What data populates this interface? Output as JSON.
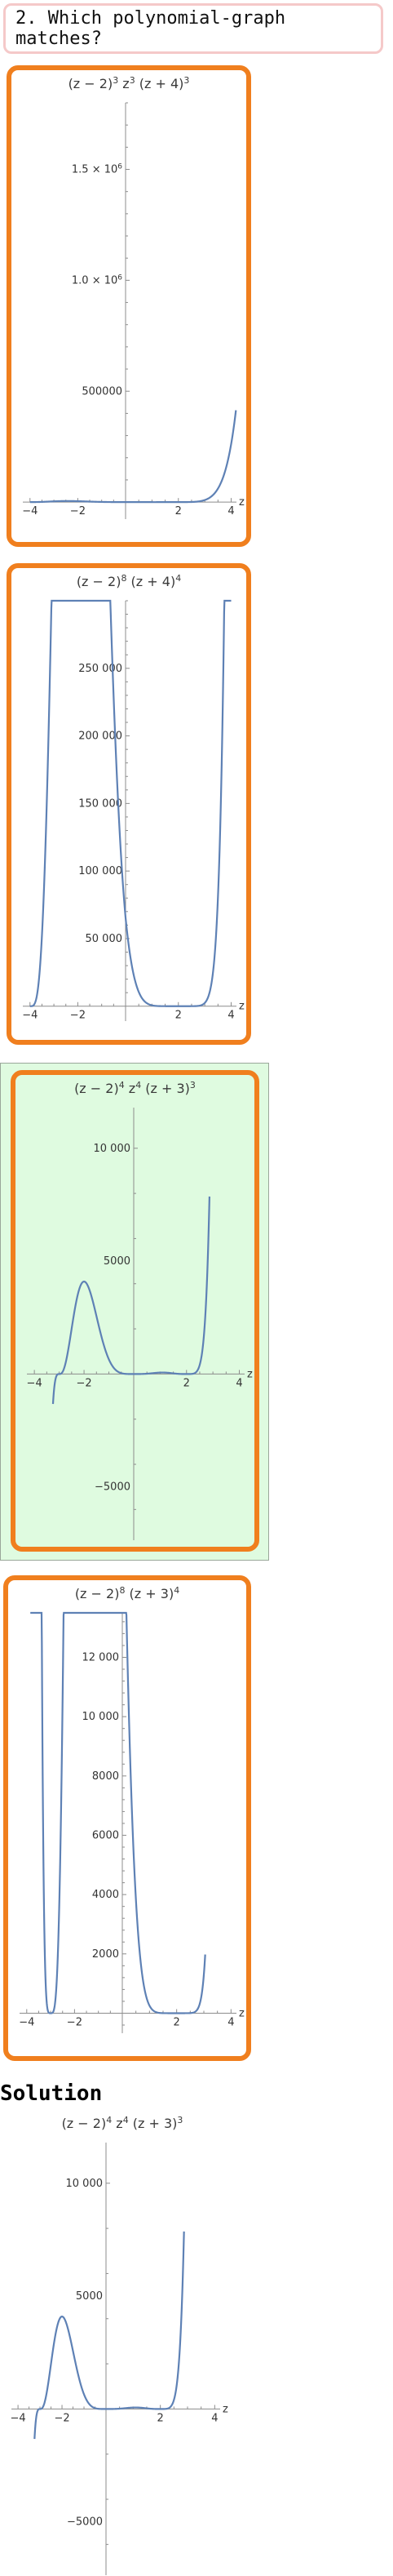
{
  "question": {
    "text": "2. Which polynomial-graph matches?"
  },
  "solution": {
    "title": "Solution"
  },
  "colors": {
    "option_border": "#f07f1e",
    "selected_bg": "#dffbe0",
    "question_border": "#f5c9c9",
    "curve": "#5e81b5"
  },
  "chart_data": [
    {
      "type": "line",
      "title": "(z − 2)³ z³ (z + 4)³",
      "title_parts": [
        "(z − 2)",
        "3",
        " z",
        "3",
        " (z + 4)",
        "3"
      ],
      "xlabel": "z",
      "xlim": [
        -4.3,
        4.2
      ],
      "ylim": [
        -40000,
        1800000
      ],
      "xticks": [
        -4,
        -2,
        2,
        4
      ],
      "xtick_labels": [
        "−4",
        "−2",
        "2",
        "4"
      ],
      "yticks": [
        500000,
        1000000,
        1500000
      ],
      "ytick_labels": [
        "500000",
        "1.0 × 10",
        "1.5 × 10"
      ],
      "ytick_exp": [
        "",
        "6",
        "6"
      ],
      "series": [
        {
          "expr": "p1",
          "x_range": [
            -4,
            4.18
          ]
        }
      ]
    },
    {
      "type": "line",
      "title": "(z − 2)⁸ (z + 4)⁴",
      "title_parts": [
        "(z − 2)",
        "8",
        " (z + 4)",
        "4"
      ],
      "xlabel": "z",
      "xlim": [
        -4.3,
        4.2
      ],
      "ylim": [
        -5000,
        300000
      ],
      "xticks": [
        -4,
        -2,
        2,
        4
      ],
      "xtick_labels": [
        "−4",
        "−2",
        "2",
        "4"
      ],
      "yticks": [
        50000,
        100000,
        150000,
        200000,
        250000
      ],
      "ytick_labels": [
        "50 000",
        "100 000",
        "150 000",
        "200 000",
        "250 000"
      ],
      "ytick_exp": [
        "",
        "",
        "",
        "",
        ""
      ],
      "series": [
        {
          "expr": "p2",
          "x_range": [
            -4.0,
            4.0
          ]
        }
      ]
    },
    {
      "type": "line",
      "title": "(z − 2)⁴ z⁴ (z + 3)³",
      "title_parts": [
        "(z − 2)",
        "4",
        " z",
        "4",
        " (z + 3)",
        "3"
      ],
      "xlabel": "z",
      "xlim": [
        -4.3,
        4.2
      ],
      "ylim": [
        -7000,
        11800
      ],
      "xticks": [
        -4,
        -2,
        2,
        4
      ],
      "xtick_labels": [
        "−4",
        "−2",
        "2",
        "4"
      ],
      "yticks": [
        -5000,
        5000,
        10000
      ],
      "ytick_labels": [
        "−5000",
        "5000",
        "10 000"
      ],
      "ytick_exp": [
        "",
        "",
        ""
      ],
      "series": [
        {
          "expr": "p3",
          "x_range": [
            -3.25,
            2.87
          ]
        }
      ]
    },
    {
      "type": "line",
      "title": "(z − 2)⁸ (z + 3)⁴",
      "title_parts": [
        "(z − 2)",
        "8",
        " (z + 3)",
        "4"
      ],
      "xlabel": "z",
      "xlim": [
        -4.3,
        4.2
      ],
      "ylim": [
        -400,
        13500
      ],
      "xticks": [
        -4,
        -2,
        2,
        4
      ],
      "xtick_labels": [
        "−4",
        "−2",
        "2",
        "4"
      ],
      "yticks": [
        2000,
        4000,
        6000,
        8000,
        10000,
        12000
      ],
      "ytick_labels": [
        "2000",
        "4000",
        "6000",
        "8000",
        "10 000",
        "12 000"
      ],
      "ytick_exp": [
        "",
        "",
        "",
        "",
        "",
        ""
      ],
      "series": [
        {
          "expr": "p4",
          "x_range": [
            -3.85,
            3.05
          ]
        }
      ]
    },
    {
      "type": "line",
      "title": "(z − 2)⁴ z⁴ (z + 3)³",
      "title_parts": [
        "(z − 2)",
        "4",
        " z",
        "4",
        " (z + 3)",
        "3"
      ],
      "xlabel": "z",
      "xlim": [
        -4.3,
        4.2
      ],
      "ylim": [
        -7000,
        11800
      ],
      "xticks": [
        -4,
        -2,
        2,
        4
      ],
      "xtick_labels": [
        "−4",
        "−2",
        "2",
        "4"
      ],
      "yticks": [
        -5000,
        5000,
        10000
      ],
      "ytick_labels": [
        "−5000",
        "5000",
        "10 000"
      ],
      "ytick_exp": [
        "",
        "",
        ""
      ],
      "series": [
        {
          "expr": "p3",
          "x_range": [
            -3.25,
            2.87
          ]
        }
      ]
    }
  ]
}
